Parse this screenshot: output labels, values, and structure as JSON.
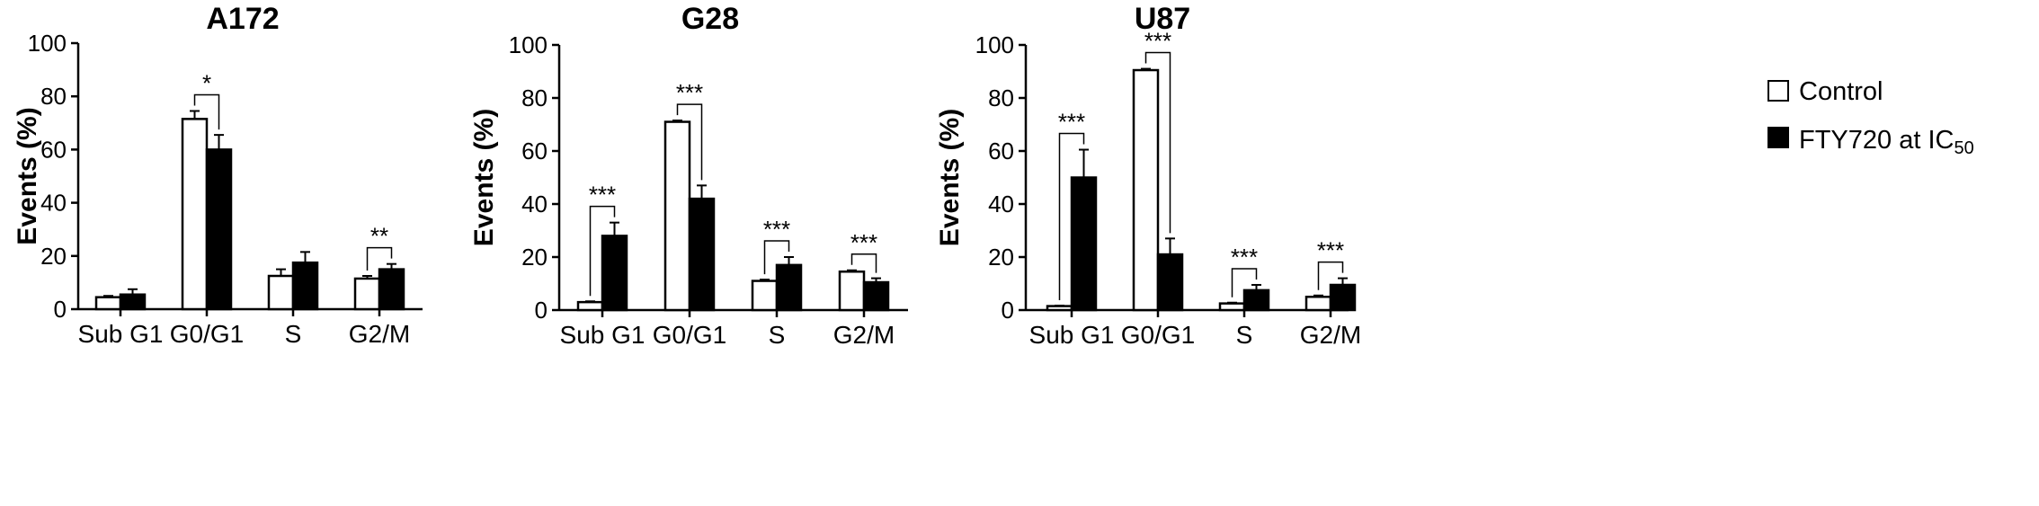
{
  "legend": {
    "placement": "top-right",
    "items": [
      {
        "label": "Control",
        "fill": "#ffffff"
      },
      {
        "label": "FTY720 at IC",
        "sub": "50",
        "fill": "#000000"
      }
    ]
  },
  "chart_data": [
    {
      "type": "bar",
      "title": "A172",
      "ylabel": "Events (%)",
      "ylim": [
        0,
        100
      ],
      "yticks": [
        "0",
        "20",
        "40",
        "60",
        "80",
        "100"
      ],
      "categories": [
        "Sub G1",
        "G0/G1",
        "S",
        "G2/M"
      ],
      "series": [
        {
          "name": "Control",
          "values": [
            4.5,
            71.5,
            12.5,
            11.5
          ],
          "errors": [
            0.5,
            3,
            2.5,
            1
          ]
        },
        {
          "name": "FTY720 at IC50",
          "values": [
            5.5,
            60,
            17.5,
            15
          ],
          "errors": [
            2,
            5.5,
            4,
            2
          ]
        }
      ],
      "significance": [
        "",
        "*",
        "",
        "**"
      ]
    },
    {
      "type": "bar",
      "title": "G28",
      "ylabel": "Events (%)",
      "ylim": [
        0,
        100
      ],
      "yticks": [
        "0",
        "20",
        "40",
        "60",
        "80",
        "100"
      ],
      "categories": [
        "Sub G1",
        "G0/G1",
        "S",
        "G2/M"
      ],
      "series": [
        {
          "name": "Control",
          "values": [
            3,
            71,
            11,
            14.5
          ],
          "errors": [
            0.3,
            0.5,
            0.5,
            0.5
          ]
        },
        {
          "name": "FTY720 at IC50",
          "values": [
            28,
            42,
            17,
            10.5
          ],
          "errors": [
            5,
            5,
            3,
            1.5
          ]
        }
      ],
      "significance": [
        "***",
        "***",
        "***",
        "***"
      ]
    },
    {
      "type": "bar",
      "title": "U87",
      "ylabel": "Events (%)",
      "ylim": [
        0,
        100
      ],
      "yticks": [
        "0",
        "20",
        "40",
        "60",
        "80",
        "100"
      ],
      "categories": [
        "Sub G1",
        "G0/G1",
        "S",
        "G2/M"
      ],
      "series": [
        {
          "name": "Control",
          "values": [
            1.5,
            90.5,
            2.5,
            5
          ],
          "errors": [
            0.2,
            0.5,
            0.3,
            0.5
          ]
        },
        {
          "name": "FTY720 at IC50",
          "values": [
            50,
            21,
            7.5,
            9.5
          ],
          "errors": [
            10.5,
            6,
            2,
            2.5
          ]
        }
      ],
      "significance": [
        "***",
        "***",
        "***",
        "***"
      ]
    }
  ]
}
